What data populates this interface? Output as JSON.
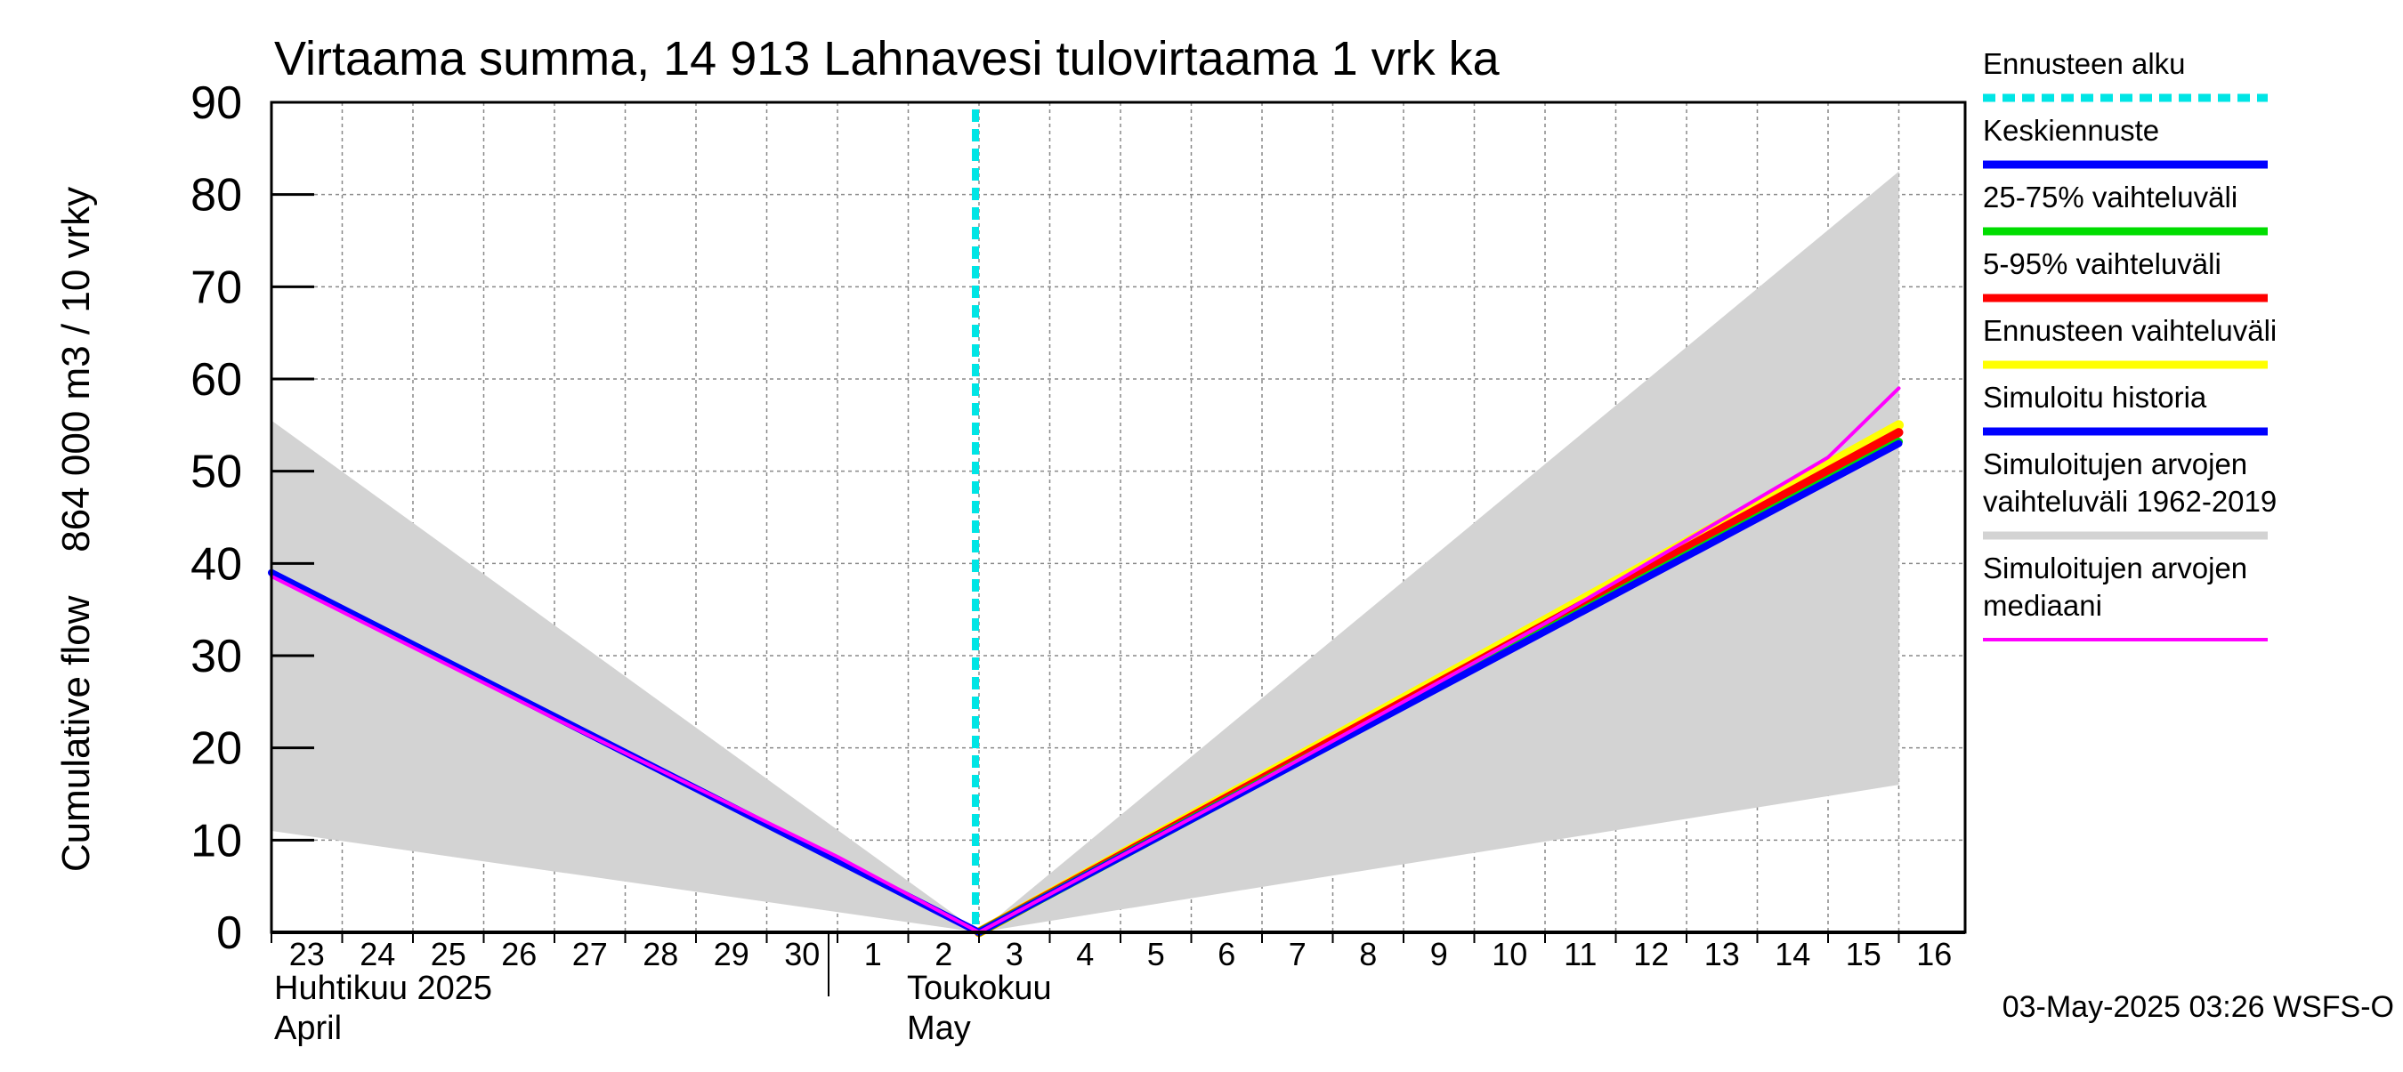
{
  "chart_data": {
    "type": "line",
    "title": "Virtaama summa, 14 913 Lahnavesi tulovirtaama 1 vrk ka",
    "ylabel": "Cumulative flow    864 000 m3 / 10 vrky",
    "ylim": [
      0,
      90
    ],
    "yticks": [
      "0",
      "10",
      "20",
      "30",
      "40",
      "50",
      "60",
      "70",
      "80",
      "90"
    ],
    "x_dates": [
      "04-23",
      "04-24",
      "04-25",
      "04-26",
      "04-27",
      "04-28",
      "04-29",
      "04-30",
      "05-01",
      "05-02",
      "05-03",
      "05-04",
      "05-05",
      "05-06",
      "05-07",
      "05-08",
      "05-09",
      "05-10",
      "05-11",
      "05-12",
      "05-13",
      "05-14",
      "05-15",
      "05-16"
    ],
    "xtick_labels": [
      "23",
      "24",
      "25",
      "26",
      "27",
      "28",
      "29",
      "30",
      "1",
      "2",
      "3",
      "4",
      "5",
      "6",
      "7",
      "8",
      "9",
      "10",
      "11",
      "12",
      "13",
      "14",
      "15",
      "16"
    ],
    "month_labels": [
      {
        "fi": "Huhtikuu  2025",
        "en": "April"
      },
      {
        "fi": "Toukokuu",
        "en": "May"
      }
    ],
    "forecast_start": "05-03",
    "timestamp": "03-May-2025 03:26 WSFS-O",
    "grid": true,
    "legend_position": "right",
    "colors": {
      "forecast_start": "#00e5e5",
      "mean_forecast": "#0000ff",
      "range_25_75": "#00dd00",
      "range_5_95": "#ff0000",
      "forecast_range": "#ffff00",
      "simulated_history": "#0000ff",
      "hist_range": "#d3d3d3",
      "hist_median": "#ff00ff"
    },
    "legend": [
      {
        "label": "Ennusteen alku",
        "style": "dashed",
        "color": "#00e5e5"
      },
      {
        "label": "Keskiennuste",
        "style": "solid",
        "color": "#0000ff"
      },
      {
        "label": "25-75% vaihteluväli",
        "style": "solid",
        "color": "#00dd00"
      },
      {
        "label": "5-95% vaihteluväli",
        "style": "solid",
        "color": "#ff0000"
      },
      {
        "label": "Ennusteen vaihteluväli",
        "style": "solid",
        "color": "#ffff00"
      },
      {
        "label": "Simuloitu historia",
        "style": "solid",
        "color": "#0000ff"
      },
      {
        "label": "Simuloitujen arvojen\nvaihteluväli 1962-2019",
        "style": "solid",
        "color": "#d3d3d3"
      },
      {
        "label": "Simuloitujen arvojen\nmediaani",
        "style": "solid",
        "color": "#ff00ff"
      }
    ],
    "series": [
      {
        "name": "Simuloitujen arvojen vaihteluväli 1962-2019 (upper)",
        "x": [
          "04-23",
          "05-03",
          "05-16"
        ],
        "values": [
          55.5,
          0,
          82.5
        ]
      },
      {
        "name": "Simuloitujen arvojen vaihteluväli 1962-2019 (lower)",
        "x": [
          "04-23",
          "05-03",
          "05-16"
        ],
        "values": [
          11,
          0,
          16
        ]
      },
      {
        "name": "Ennusteen vaihteluväli",
        "x": [
          "05-03",
          "05-16"
        ],
        "values": [
          0,
          55
        ]
      },
      {
        "name": "5-95% vaihteluväli",
        "x": [
          "05-03",
          "05-16"
        ],
        "values": [
          0,
          54.2
        ]
      },
      {
        "name": "25-75% vaihteluväli",
        "x": [
          "05-03",
          "05-16"
        ],
        "values": [
          0,
          53.2
        ]
      },
      {
        "name": "Keskiennuste",
        "x": [
          "05-03",
          "05-16"
        ],
        "values": [
          0,
          53
        ]
      },
      {
        "name": "Simuloitu historia",
        "x": [
          "04-23",
          "05-03"
        ],
        "values": [
          39,
          0
        ]
      },
      {
        "name": "Simuloitujen arvojen mediaani",
        "x": [
          "04-23",
          "04-27",
          "05-01",
          "05-03",
          "05-07",
          "05-11",
          "05-15",
          "05-16"
        ],
        "values": [
          38.6,
          23.2,
          8.2,
          0,
          16.5,
          33.5,
          51.5,
          59
        ]
      }
    ]
  }
}
